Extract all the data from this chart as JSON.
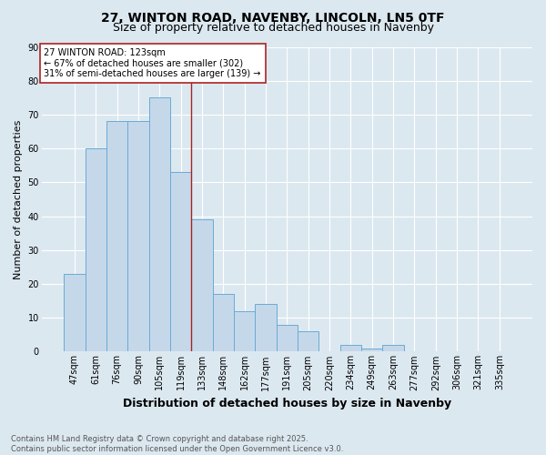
{
  "title_line1": "27, WINTON ROAD, NAVENBY, LINCOLN, LN5 0TF",
  "title_line2": "Size of property relative to detached houses in Navenby",
  "xlabel": "Distribution of detached houses by size in Navenby",
  "ylabel": "Number of detached properties",
  "bar_labels": [
    "47sqm",
    "61sqm",
    "76sqm",
    "90sqm",
    "105sqm",
    "119sqm",
    "133sqm",
    "148sqm",
    "162sqm",
    "177sqm",
    "191sqm",
    "205sqm",
    "220sqm",
    "234sqm",
    "249sqm",
    "263sqm",
    "277sqm",
    "292sqm",
    "306sqm",
    "321sqm",
    "335sqm"
  ],
  "bar_values": [
    23,
    60,
    68,
    68,
    75,
    53,
    39,
    17,
    12,
    14,
    8,
    6,
    0,
    2,
    1,
    2,
    0,
    0,
    0,
    0,
    0
  ],
  "bar_color": "#c5d8ea",
  "bar_edge_color": "#6aaad4",
  "vline_x_index": 5,
  "vline_color": "#aa2222",
  "annotation_text": "27 WINTON ROAD: 123sqm\n← 67% of detached houses are smaller (302)\n31% of semi-detached houses are larger (139) →",
  "annotation_box_color": "#ffffff",
  "annotation_box_edge_color": "#aa2222",
  "ylim": [
    0,
    90
  ],
  "yticks": [
    0,
    10,
    20,
    30,
    40,
    50,
    60,
    70,
    80,
    90
  ],
  "background_color": "#dce8f0",
  "plot_bg_color": "#dce8f0",
  "footer_text": "Contains HM Land Registry data © Crown copyright and database right 2025.\nContains public sector information licensed under the Open Government Licence v3.0.",
  "title_fontsize": 10,
  "subtitle_fontsize": 9,
  "ylabel_fontsize": 8,
  "xlabel_fontsize": 9,
  "tick_fontsize": 7,
  "annotation_fontsize": 7,
  "footer_fontsize": 6
}
